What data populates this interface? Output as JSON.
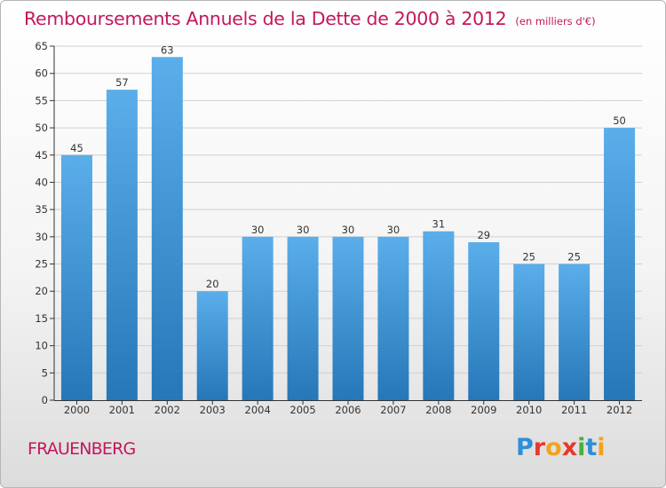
{
  "header": {
    "title": "Remboursements Annuels de la Dette de 2000 à 2012",
    "unit": "(en milliers d'€)"
  },
  "footer": {
    "town": "FRAUENBERG",
    "logo_letters": [
      {
        "char": "P",
        "color": "#2e8fd6"
      },
      {
        "char": "r",
        "color": "#e8392b"
      },
      {
        "char": "o",
        "color": "#f2a31b"
      },
      {
        "char": "x",
        "color": "#e8392b"
      },
      {
        "char": "i",
        "color": "#4caf3c"
      },
      {
        "char": "t",
        "color": "#2e8fd6"
      },
      {
        "char": "i",
        "color": "#f2a31b"
      }
    ]
  },
  "colors": {
    "bar_light": "#5aaeea",
    "bar_dark": "#2677b8",
    "title": "#c2185b",
    "grid": "#d0d0d0"
  },
  "chart_data": {
    "type": "bar",
    "categories": [
      "2000",
      "2001",
      "2002",
      "2003",
      "2004",
      "2005",
      "2006",
      "2007",
      "2008",
      "2009",
      "2010",
      "2011",
      "2012"
    ],
    "values": [
      45,
      57,
      63,
      20,
      30,
      30,
      30,
      30,
      31,
      29,
      25,
      25,
      50
    ],
    "ylim": [
      0,
      65
    ],
    "yticks": [
      0,
      5,
      10,
      15,
      20,
      25,
      30,
      35,
      40,
      45,
      50,
      55,
      60,
      65
    ],
    "grid": true,
    "legend": "none"
  }
}
